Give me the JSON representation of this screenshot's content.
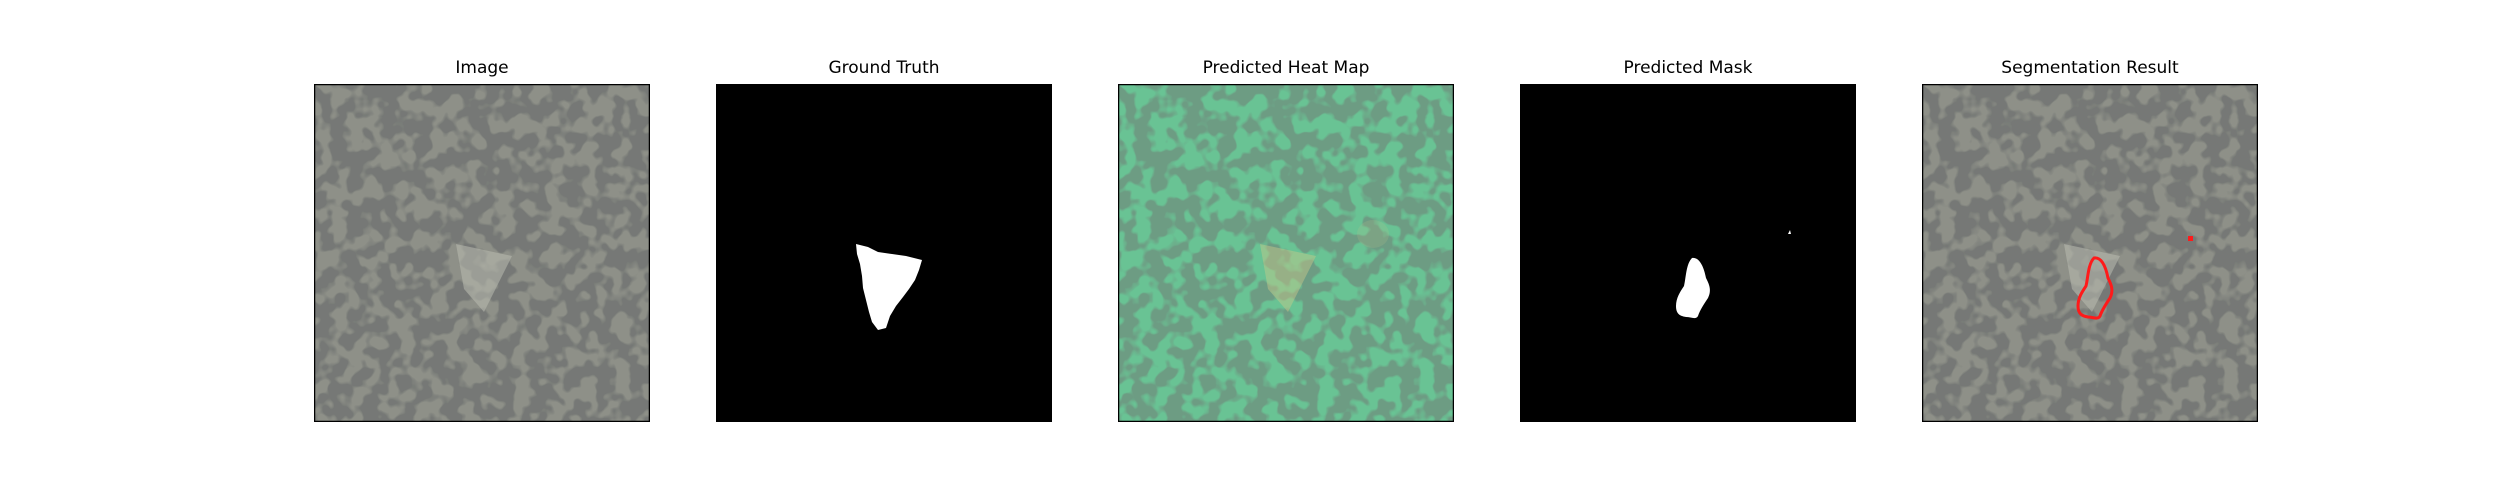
{
  "figure": {
    "panels": [
      {
        "title": "Image"
      },
      {
        "title": "Ground Truth"
      },
      {
        "title": "Predicted Heat Map"
      },
      {
        "title": "Predicted Mask"
      },
      {
        "title": "Segmentation Result"
      }
    ]
  },
  "colors": {
    "background": "#ffffff",
    "frame": "#000000",
    "speckle_light": "#8e9088",
    "speckle_dark": "#2f302e",
    "heat_overlay": "#5fc08a",
    "mask_foreground": "#ffffff",
    "mask_background": "#000000",
    "contour": "#ff1a1a"
  }
}
